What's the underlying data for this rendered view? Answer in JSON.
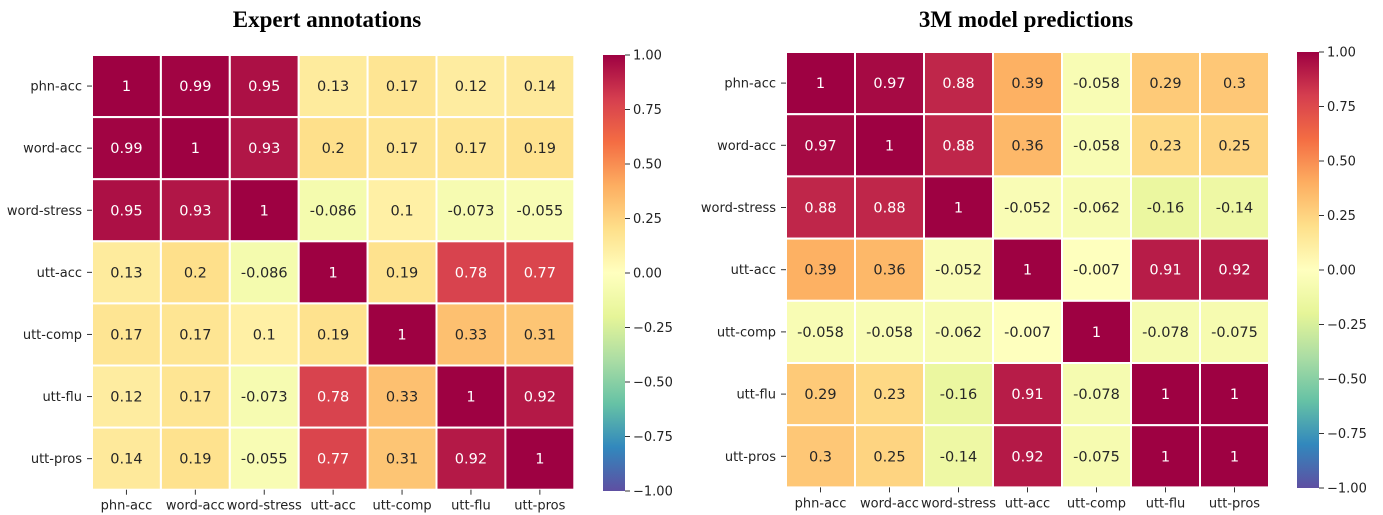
{
  "chart_data": [
    {
      "type": "heatmap",
      "title": "Expert annotations",
      "xlabel": "",
      "ylabel": "",
      "x_categories": [
        "phn-acc",
        "word-acc",
        "word-stress",
        "utt-acc",
        "utt-comp",
        "utt-flu",
        "utt-pros"
      ],
      "y_categories": [
        "phn-acc",
        "word-acc",
        "word-stress",
        "utt-acc",
        "utt-comp",
        "utt-flu",
        "utt-pros"
      ],
      "values": [
        [
          "1",
          "0.99",
          "0.95",
          "0.13",
          "0.17",
          "0.12",
          "0.14"
        ],
        [
          "0.99",
          "1",
          "0.93",
          "0.2",
          "0.17",
          "0.17",
          "0.19"
        ],
        [
          "0.95",
          "0.93",
          "1",
          "-0.086",
          "0.1",
          "-0.073",
          "-0.055"
        ],
        [
          "0.13",
          "0.2",
          "-0.086",
          "1",
          "0.19",
          "0.78",
          "0.77"
        ],
        [
          "0.17",
          "0.17",
          "0.1",
          "0.19",
          "1",
          "0.33",
          "0.31"
        ],
        [
          "0.12",
          "0.17",
          "-0.073",
          "0.78",
          "0.33",
          "1",
          "0.92"
        ],
        [
          "0.14",
          "0.19",
          "-0.055",
          "0.77",
          "0.31",
          "0.92",
          "1"
        ]
      ],
      "colorbar": {
        "range": [
          -1,
          1
        ],
        "ticks": [
          1,
          0.75,
          0.5,
          0.25,
          0,
          -0.25,
          -0.5,
          -0.75,
          -1
        ],
        "tick_labels": [
          "1.00",
          "0.75",
          "0.50",
          "0.25",
          "0.00",
          "−0.25",
          "−0.50",
          "−0.75",
          "−1.00"
        ],
        "colormap": "Spectral_r"
      }
    },
    {
      "type": "heatmap",
      "title": "3M model predictions",
      "xlabel": "",
      "ylabel": "",
      "x_categories": [
        "phn-acc",
        "word-acc",
        "word-stress",
        "utt-acc",
        "utt-comp",
        "utt-flu",
        "utt-pros"
      ],
      "y_categories": [
        "phn-acc",
        "word-acc",
        "word-stress",
        "utt-acc",
        "utt-comp",
        "utt-flu",
        "utt-pros"
      ],
      "values": [
        [
          "1",
          "0.97",
          "0.88",
          "0.39",
          "-0.058",
          "0.29",
          "0.3"
        ],
        [
          "0.97",
          "1",
          "0.88",
          "0.36",
          "-0.058",
          "0.23",
          "0.25"
        ],
        [
          "0.88",
          "0.88",
          "1",
          "-0.052",
          "-0.062",
          "-0.16",
          "-0.14"
        ],
        [
          "0.39",
          "0.36",
          "-0.052",
          "1",
          "-0.007",
          "0.91",
          "0.92"
        ],
        [
          "-0.058",
          "-0.058",
          "-0.062",
          "-0.007",
          "1",
          "-0.078",
          "-0.075"
        ],
        [
          "0.29",
          "0.23",
          "-0.16",
          "0.91",
          "-0.078",
          "1",
          "1"
        ],
        [
          "0.3",
          "0.25",
          "-0.14",
          "0.92",
          "-0.075",
          "1",
          "1"
        ]
      ],
      "colorbar": {
        "range": [
          -1,
          1
        ],
        "ticks": [
          1,
          0.75,
          0.5,
          0.25,
          0,
          -0.25,
          -0.5,
          -0.75,
          -1
        ],
        "tick_labels": [
          "1.00",
          "0.75",
          "0.50",
          "0.25",
          "0.00",
          "−0.25",
          "−0.50",
          "−0.75",
          "−1.00"
        ],
        "colormap": "Spectral_r"
      }
    }
  ],
  "colormap_stops": [
    [
      -1.0,
      "#5e4fa2"
    ],
    [
      -0.8,
      "#3288bd"
    ],
    [
      -0.6,
      "#66c2a5"
    ],
    [
      -0.4,
      "#abdda4"
    ],
    [
      -0.2,
      "#e6f598"
    ],
    [
      0.0,
      "#ffffbf"
    ],
    [
      0.2,
      "#fee08b"
    ],
    [
      0.4,
      "#fdae61"
    ],
    [
      0.6,
      "#f46d43"
    ],
    [
      0.8,
      "#d53e4f"
    ],
    [
      1.0,
      "#9e0142"
    ]
  ]
}
